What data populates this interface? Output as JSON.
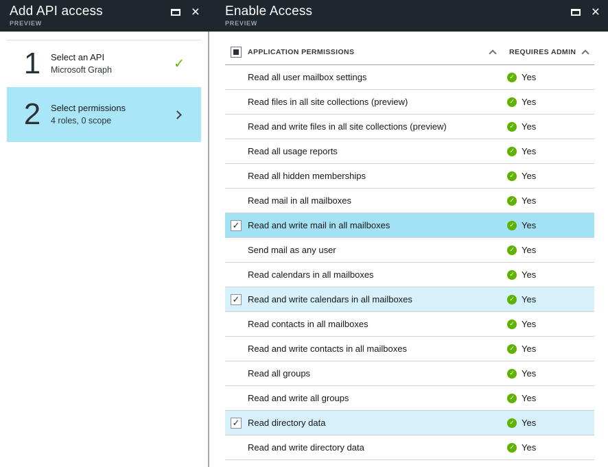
{
  "icons": {
    "close": "×",
    "check": "✓"
  },
  "colors": {
    "header_bg": "#1f262d",
    "panel_divider": "#a6a6a6",
    "selected_tile_blue": "#a9e6f8",
    "row_highlight_strong": "#a3e1f4",
    "row_highlight_light": "#d6f1fb",
    "status_green": "#5db300"
  },
  "left_panel": {
    "title": "Add API access",
    "preview": "PREVIEW",
    "steps": [
      {
        "number": "1",
        "title": "Select an API",
        "subtitle": "Microsoft Graph",
        "status": "complete"
      },
      {
        "number": "2",
        "title": "Select permissions",
        "subtitle": "4 roles, 0 scope",
        "status": "selected"
      }
    ]
  },
  "right_panel": {
    "title": "Enable Access",
    "preview": "PREVIEW",
    "table": {
      "select_all_state": "indeterminate",
      "columns": [
        "APPLICATION PERMISSIONS",
        "REQUIRES ADMIN"
      ],
      "rows": [
        {
          "label": "Read all user mailbox settings",
          "requires_admin": "Yes",
          "checked": false,
          "highlight": null
        },
        {
          "label": "Read files in all site collections (preview)",
          "requires_admin": "Yes",
          "checked": false,
          "highlight": null
        },
        {
          "label": "Read and write files in all site collections (preview)",
          "requires_admin": "Yes",
          "checked": false,
          "highlight": null
        },
        {
          "label": "Read all usage reports",
          "requires_admin": "Yes",
          "checked": false,
          "highlight": null
        },
        {
          "label": "Read all hidden memberships",
          "requires_admin": "Yes",
          "checked": false,
          "highlight": null
        },
        {
          "label": "Read mail in all mailboxes",
          "requires_admin": "Yes",
          "checked": false,
          "highlight": null
        },
        {
          "label": "Read and write mail in all mailboxes",
          "requires_admin": "Yes",
          "checked": true,
          "highlight": "strong"
        },
        {
          "label": "Send mail as any user",
          "requires_admin": "Yes",
          "checked": false,
          "highlight": null
        },
        {
          "label": "Read calendars in all mailboxes",
          "requires_admin": "Yes",
          "checked": false,
          "highlight": null
        },
        {
          "label": "Read and write calendars in all mailboxes",
          "requires_admin": "Yes",
          "checked": true,
          "highlight": "light"
        },
        {
          "label": "Read contacts in all mailboxes",
          "requires_admin": "Yes",
          "checked": false,
          "highlight": null
        },
        {
          "label": "Read and write contacts in all mailboxes",
          "requires_admin": "Yes",
          "checked": false,
          "highlight": null
        },
        {
          "label": "Read all groups",
          "requires_admin": "Yes",
          "checked": false,
          "highlight": null
        },
        {
          "label": "Read and write all groups",
          "requires_admin": "Yes",
          "checked": false,
          "highlight": null
        },
        {
          "label": "Read directory data",
          "requires_admin": "Yes",
          "checked": true,
          "highlight": "light"
        },
        {
          "label": "Read and write directory data",
          "requires_admin": "Yes",
          "checked": false,
          "highlight": null
        }
      ]
    }
  }
}
